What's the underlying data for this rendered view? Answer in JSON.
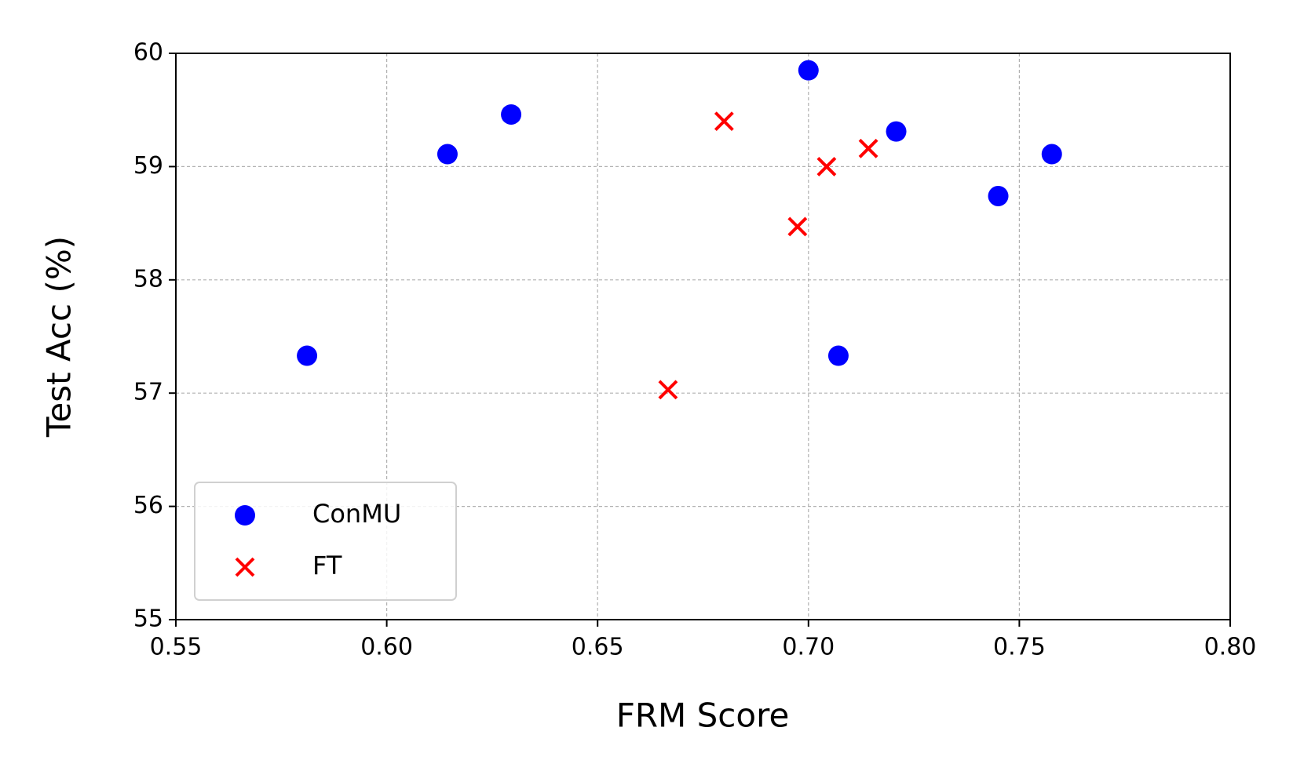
{
  "chart_data": {
    "type": "scatter",
    "x_label": "FRM Score",
    "y_label": "Test Acc (%)",
    "xlim": [
      0.55,
      0.8
    ],
    "xticks": [
      0.55,
      {
        "value": 0.6,
        "label": "0.60"
      },
      0.65,
      {
        "value": 0.7,
        "label": "0.70"
      },
      0.75,
      {
        "value": 0.8,
        "label": "0.80"
      }
    ],
    "ylim": [
      55,
      60
    ],
    "yticks": [
      55,
      56,
      57,
      58,
      59,
      60
    ],
    "grid": true,
    "legend": "lower left",
    "series": [
      {
        "name": "ConMU",
        "color": "#0000ff",
        "marker": "circle",
        "x": [
          0.5811,
          0.6144,
          0.6295,
          0.7,
          0.7071,
          0.7208,
          0.745,
          0.7577
        ],
        "values": [
          57.33,
          59.11,
          59.46,
          59.85,
          57.33,
          59.31,
          58.74,
          59.11
        ]
      },
      {
        "name": "FT",
        "color": "#ff0000",
        "marker": "x",
        "x": [
          0.6667,
          0.68,
          0.6974,
          0.7043,
          0.7142
        ],
        "values": [
          57.03,
          59.4,
          58.47,
          59.0,
          59.16
        ]
      }
    ]
  }
}
